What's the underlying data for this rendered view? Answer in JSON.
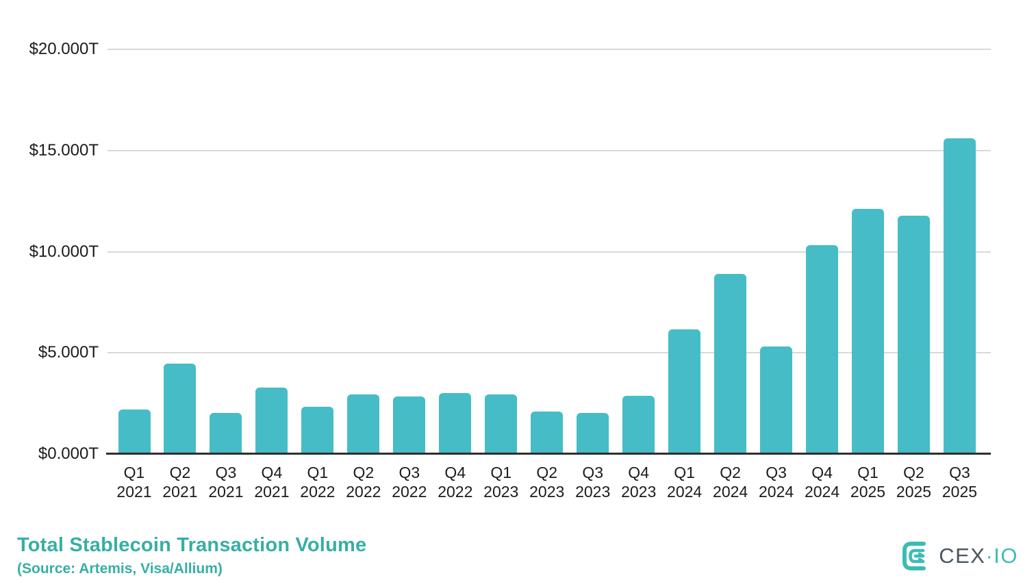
{
  "chart_data": {
    "type": "bar",
    "title": "Total Stablecoin Transaction Volume",
    "source": "(Source: Artemis, Visa/Allium)",
    "unit": "trillions USD",
    "categories": [
      [
        "Q1",
        "2021"
      ],
      [
        "Q2",
        "2021"
      ],
      [
        "Q3",
        "2021"
      ],
      [
        "Q4",
        "2021"
      ],
      [
        "Q1",
        "2022"
      ],
      [
        "Q2",
        "2022"
      ],
      [
        "Q3",
        "2022"
      ],
      [
        "Q4",
        "2022"
      ],
      [
        "Q1",
        "2023"
      ],
      [
        "Q2",
        "2023"
      ],
      [
        "Q3",
        "2023"
      ],
      [
        "Q4",
        "2023"
      ],
      [
        "Q1",
        "2024"
      ],
      [
        "Q2",
        "2024"
      ],
      [
        "Q3",
        "2024"
      ],
      [
        "Q4",
        "2024"
      ],
      [
        "Q1",
        "2025"
      ],
      [
        "Q2",
        "2025"
      ],
      [
        "Q3",
        "2025"
      ]
    ],
    "values": [
      2.17,
      4.43,
      2.0,
      3.25,
      2.3,
      2.91,
      2.81,
      2.98,
      2.91,
      2.06,
      2.0,
      2.84,
      6.12,
      8.87,
      5.28,
      10.29,
      12.08,
      11.74,
      15.58
    ],
    "ylim": [
      0,
      20
    ],
    "yticks": [
      {
        "label": "$20.000T",
        "value": 20
      },
      {
        "label": "$15.000T",
        "value": 15
      },
      {
        "label": "$10.000T",
        "value": 10
      },
      {
        "label": "$5.000T",
        "value": 5
      },
      {
        "label": "$0.000T",
        "value": 0
      }
    ],
    "grid": true,
    "legend": "none",
    "xlabel": "",
    "ylabel": ""
  },
  "colors": {
    "bar": "#46BCC6",
    "gridline": "#d9d9d9",
    "axis_line": "#2e2e2e",
    "axis_text": "#1b1b1b",
    "title_teal": "#36AFA5",
    "logo_dark": "#4A545E",
    "logo_teal": "#3CBCB4"
  },
  "logo": {
    "text_primary": "CEX",
    "separator": "·",
    "text_secondary": "IO",
    "mark": "cexio-emblem"
  }
}
